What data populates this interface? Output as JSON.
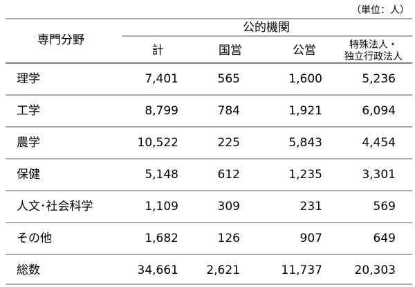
{
  "unit_note": "（単位：人）",
  "table": {
    "header": {
      "field": "専門分野",
      "group": "公的機関",
      "columns": [
        [
          "計"
        ],
        [
          "国営"
        ],
        [
          "公営"
        ],
        [
          "特殊法人・",
          "独立行政法人"
        ]
      ]
    },
    "rows": [
      [
        "理学",
        "7,401",
        "565",
        "1,600",
        "5,236"
      ],
      [
        "工学",
        "8,799",
        "784",
        "1,921",
        "6,094"
      ],
      [
        "農学",
        "10,522",
        "225",
        "5,843",
        "4,454"
      ],
      [
        "保健",
        "5,148",
        "612",
        "1,235",
        "3,301"
      ],
      [
        "人文･社会科学",
        "1,109",
        "309",
        "231",
        "569"
      ],
      [
        "その他",
        "1,682",
        "126",
        "907",
        "649"
      ],
      [
        "総数",
        "34,661",
        "2,621",
        "11,737",
        "20,303"
      ]
    ]
  }
}
